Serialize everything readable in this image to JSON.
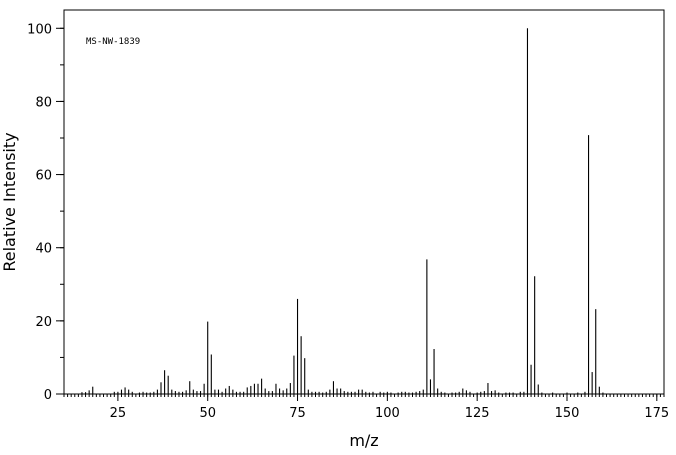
{
  "chart_data": {
    "type": "bar",
    "annotation": "MS-NW-1839",
    "xlabel": "m/z",
    "ylabel": "Relative Intensity",
    "xlim": [
      10,
      177
    ],
    "ylim": [
      0,
      105
    ],
    "x_major_ticks": [
      25,
      50,
      75,
      100,
      125,
      150,
      175
    ],
    "y_major_ticks": [
      0,
      20,
      40,
      60,
      80,
      100
    ],
    "x_minor_step": 1,
    "y_minor_step": 10,
    "grid": false,
    "legend": "none",
    "bar_color": "#000000",
    "peaks": [
      {
        "x": 15,
        "y": 0.5
      },
      {
        "x": 16,
        "y": 0.5
      },
      {
        "x": 17,
        "y": 1.0
      },
      {
        "x": 18,
        "y": 2.0
      },
      {
        "x": 24,
        "y": 0.6
      },
      {
        "x": 25,
        "y": 0.6
      },
      {
        "x": 26,
        "y": 1.2
      },
      {
        "x": 27,
        "y": 1.8
      },
      {
        "x": 28,
        "y": 1.2
      },
      {
        "x": 29,
        "y": 0.6
      },
      {
        "x": 31,
        "y": 0.4
      },
      {
        "x": 32,
        "y": 0.6
      },
      {
        "x": 33,
        "y": 0.4
      },
      {
        "x": 34,
        "y": 0.4
      },
      {
        "x": 35,
        "y": 0.6
      },
      {
        "x": 36,
        "y": 1.2
      },
      {
        "x": 37,
        "y": 3.2
      },
      {
        "x": 38,
        "y": 6.5
      },
      {
        "x": 39,
        "y": 5.0
      },
      {
        "x": 40,
        "y": 1.2
      },
      {
        "x": 41,
        "y": 0.8
      },
      {
        "x": 42,
        "y": 0.6
      },
      {
        "x": 43,
        "y": 0.6
      },
      {
        "x": 44,
        "y": 1.0
      },
      {
        "x": 45,
        "y": 3.5
      },
      {
        "x": 46,
        "y": 1.2
      },
      {
        "x": 47,
        "y": 0.8
      },
      {
        "x": 48,
        "y": 0.8
      },
      {
        "x": 49,
        "y": 2.8
      },
      {
        "x": 50,
        "y": 19.8
      },
      {
        "x": 51,
        "y": 10.8
      },
      {
        "x": 52,
        "y": 1.2
      },
      {
        "x": 53,
        "y": 1.2
      },
      {
        "x": 54,
        "y": 0.6
      },
      {
        "x": 55,
        "y": 1.5
      },
      {
        "x": 56,
        "y": 2.2
      },
      {
        "x": 57,
        "y": 1.2
      },
      {
        "x": 58,
        "y": 0.6
      },
      {
        "x": 59,
        "y": 0.6
      },
      {
        "x": 60,
        "y": 0.6
      },
      {
        "x": 61,
        "y": 1.8
      },
      {
        "x": 62,
        "y": 2.2
      },
      {
        "x": 63,
        "y": 2.8
      },
      {
        "x": 64,
        "y": 2.8
      },
      {
        "x": 65,
        "y": 4.2
      },
      {
        "x": 66,
        "y": 1.5
      },
      {
        "x": 67,
        "y": 0.8
      },
      {
        "x": 68,
        "y": 0.8
      },
      {
        "x": 69,
        "y": 2.8
      },
      {
        "x": 70,
        "y": 1.5
      },
      {
        "x": 71,
        "y": 1.0
      },
      {
        "x": 72,
        "y": 1.5
      },
      {
        "x": 73,
        "y": 3.0
      },
      {
        "x": 74,
        "y": 10.5
      },
      {
        "x": 75,
        "y": 26.0
      },
      {
        "x": 76,
        "y": 15.8
      },
      {
        "x": 77,
        "y": 9.8
      },
      {
        "x": 78,
        "y": 1.2
      },
      {
        "x": 79,
        "y": 0.6
      },
      {
        "x": 80,
        "y": 0.6
      },
      {
        "x": 81,
        "y": 0.6
      },
      {
        "x": 82,
        "y": 0.4
      },
      {
        "x": 83,
        "y": 0.6
      },
      {
        "x": 84,
        "y": 1.2
      },
      {
        "x": 85,
        "y": 3.5
      },
      {
        "x": 86,
        "y": 1.5
      },
      {
        "x": 87,
        "y": 1.5
      },
      {
        "x": 88,
        "y": 0.8
      },
      {
        "x": 89,
        "y": 0.6
      },
      {
        "x": 90,
        "y": 0.6
      },
      {
        "x": 91,
        "y": 0.6
      },
      {
        "x": 92,
        "y": 1.2
      },
      {
        "x": 93,
        "y": 1.2
      },
      {
        "x": 94,
        "y": 0.6
      },
      {
        "x": 95,
        "y": 0.4
      },
      {
        "x": 96,
        "y": 0.6
      },
      {
        "x": 98,
        "y": 0.6
      },
      {
        "x": 99,
        "y": 0.4
      },
      {
        "x": 100,
        "y": 0.6
      },
      {
        "x": 101,
        "y": 0.4
      },
      {
        "x": 103,
        "y": 0.4
      },
      {
        "x": 104,
        "y": 0.6
      },
      {
        "x": 105,
        "y": 0.6
      },
      {
        "x": 106,
        "y": 0.4
      },
      {
        "x": 107,
        "y": 0.4
      },
      {
        "x": 108,
        "y": 0.6
      },
      {
        "x": 109,
        "y": 0.8
      },
      {
        "x": 110,
        "y": 1.2
      },
      {
        "x": 111,
        "y": 36.8
      },
      {
        "x": 112,
        "y": 4.0
      },
      {
        "x": 113,
        "y": 12.3
      },
      {
        "x": 114,
        "y": 1.5
      },
      {
        "x": 115,
        "y": 0.6
      },
      {
        "x": 116,
        "y": 0.4
      },
      {
        "x": 118,
        "y": 0.4
      },
      {
        "x": 119,
        "y": 0.4
      },
      {
        "x": 120,
        "y": 0.6
      },
      {
        "x": 121,
        "y": 1.5
      },
      {
        "x": 122,
        "y": 1.0
      },
      {
        "x": 123,
        "y": 0.6
      },
      {
        "x": 125,
        "y": 0.4
      },
      {
        "x": 126,
        "y": 0.6
      },
      {
        "x": 127,
        "y": 0.8
      },
      {
        "x": 128,
        "y": 3.0
      },
      {
        "x": 129,
        "y": 0.8
      },
      {
        "x": 130,
        "y": 1.0
      },
      {
        "x": 131,
        "y": 0.4
      },
      {
        "x": 133,
        "y": 0.4
      },
      {
        "x": 134,
        "y": 0.4
      },
      {
        "x": 135,
        "y": 0.4
      },
      {
        "x": 137,
        "y": 0.6
      },
      {
        "x": 138,
        "y": 0.6
      },
      {
        "x": 139,
        "y": 100.0
      },
      {
        "x": 140,
        "y": 8.0
      },
      {
        "x": 141,
        "y": 32.2
      },
      {
        "x": 142,
        "y": 2.6
      },
      {
        "x": 143,
        "y": 0.4
      },
      {
        "x": 146,
        "y": 0.4
      },
      {
        "x": 150,
        "y": 0.4
      },
      {
        "x": 153,
        "y": 0.4
      },
      {
        "x": 155,
        "y": 0.6
      },
      {
        "x": 156,
        "y": 70.8
      },
      {
        "x": 157,
        "y": 6.0
      },
      {
        "x": 158,
        "y": 23.2
      },
      {
        "x": 159,
        "y": 2.0
      },
      {
        "x": 160,
        "y": 0.4
      }
    ]
  }
}
